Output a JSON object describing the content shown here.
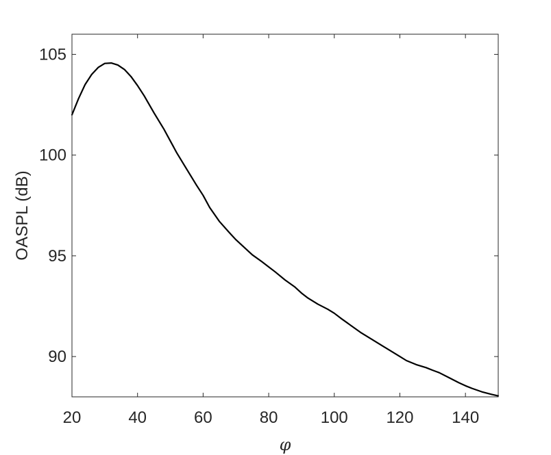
{
  "chart_data": {
    "type": "line",
    "title": "",
    "xlabel": "φ",
    "ylabel": "OASPL (dB)",
    "xlim": [
      20,
      150
    ],
    "ylim": [
      88,
      106
    ],
    "xticks": [
      20,
      40,
      60,
      80,
      100,
      120,
      140
    ],
    "yticks": [
      90,
      95,
      100,
      105
    ],
    "grid": false,
    "legend": "none",
    "colors": {
      "line": "#000000",
      "axes": "#262626"
    },
    "series": [
      {
        "x": [
          20,
          22,
          24,
          26,
          28,
          30,
          32,
          34,
          36,
          38,
          40,
          42,
          45,
          48,
          50,
          52,
          55,
          58,
          60,
          62,
          65,
          68,
          70,
          72,
          75,
          78,
          80,
          82,
          85,
          88,
          90,
          92,
          95,
          98,
          100,
          102,
          105,
          108,
          110,
          112,
          115,
          118,
          120,
          122,
          125,
          128,
          130,
          132,
          135,
          138,
          140,
          142,
          145,
          148,
          150
        ],
        "y": [
          102.0,
          102.8,
          103.5,
          104.0,
          104.35,
          104.55,
          104.57,
          104.47,
          104.25,
          103.9,
          103.45,
          102.95,
          102.1,
          101.3,
          100.7,
          100.1,
          99.3,
          98.5,
          98.0,
          97.4,
          96.7,
          96.15,
          95.8,
          95.5,
          95.05,
          94.7,
          94.45,
          94.2,
          93.8,
          93.45,
          93.15,
          92.9,
          92.6,
          92.35,
          92.15,
          91.9,
          91.55,
          91.2,
          91.0,
          90.8,
          90.5,
          90.2,
          90.0,
          89.8,
          89.6,
          89.45,
          89.32,
          89.2,
          88.95,
          88.7,
          88.55,
          88.42,
          88.25,
          88.12,
          88.05
        ]
      }
    ]
  }
}
